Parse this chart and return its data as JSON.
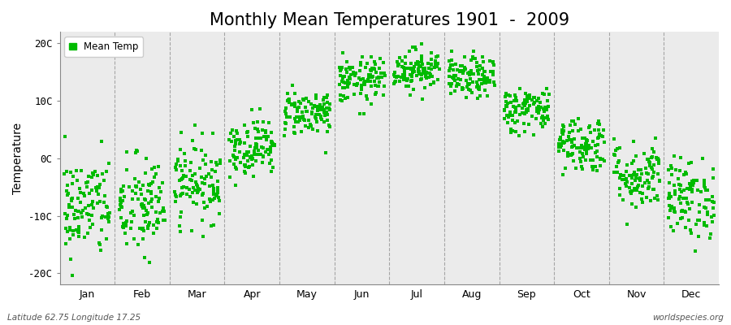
{
  "title": "Monthly Mean Temperatures 1901  -  2009",
  "ylabel": "Temperature",
  "yticks": [
    -20,
    -10,
    0,
    10,
    20
  ],
  "ytick_labels": [
    "-20C",
    "-10C",
    "0C",
    "10C",
    "20C"
  ],
  "ylim": [
    -22,
    22
  ],
  "n_months": 12,
  "month_labels": [
    "Jan",
    "Feb",
    "Mar",
    "Apr",
    "May",
    "Jun",
    "Jul",
    "Aug",
    "Sep",
    "Oct",
    "Nov",
    "Dec"
  ],
  "dot_color": "#00bb00",
  "dot_size": 12,
  "dot_marker": "s",
  "background_color": "#ebebeb",
  "figure_background": "#ffffff",
  "grid_color": "#777777",
  "legend_label": "Mean Temp",
  "bottom_left_text": "Latitude 62.75 Longitude 17.25",
  "bottom_right_text": "worldspecies.org",
  "title_fontsize": 15,
  "axis_fontsize": 10,
  "tick_fontsize": 9,
  "monthly_means": [
    -8.5,
    -8.5,
    -4.0,
    2.0,
    8.0,
    13.5,
    15.5,
    14.0,
    8.5,
    2.5,
    -3.0,
    -7.0
  ],
  "monthly_stds": [
    4.5,
    4.5,
    3.5,
    2.5,
    2.0,
    2.0,
    1.8,
    1.8,
    2.0,
    2.5,
    3.0,
    3.5
  ],
  "n_years": 109,
  "seed": 42
}
